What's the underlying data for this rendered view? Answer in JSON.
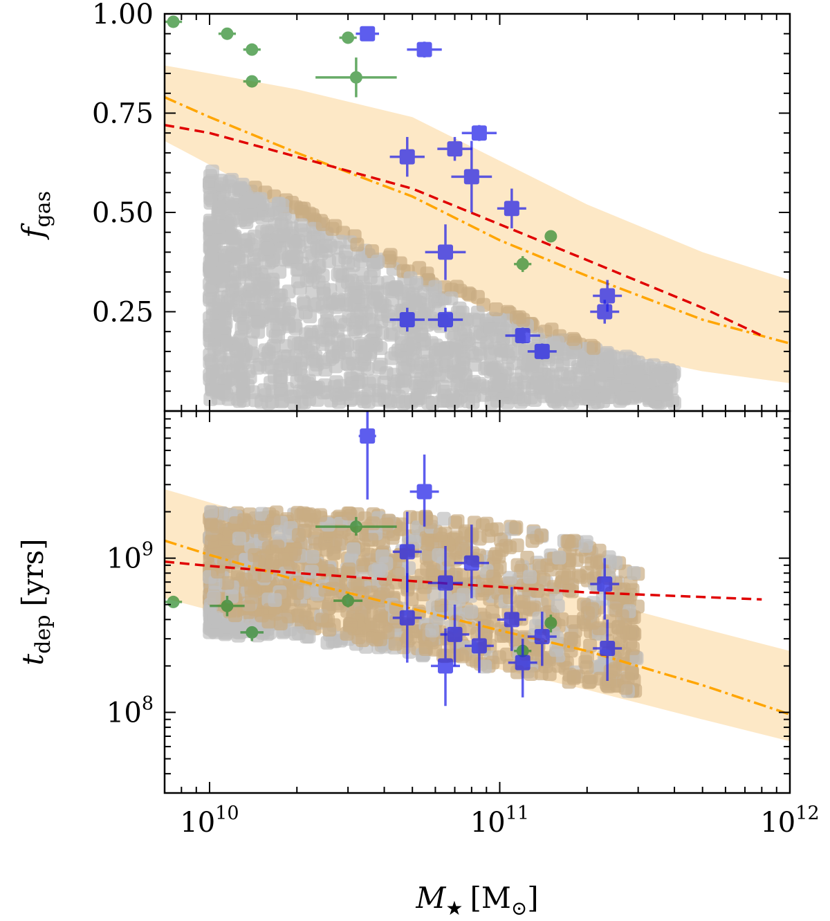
{
  "chart_data": [
    {
      "panel": "top",
      "type": "scatter",
      "xscale": "log",
      "xlim": [
        7000000000.0,
        1000000000000.0
      ],
      "ylim": [
        0.0,
        1.0
      ],
      "ylabel": {
        "main": "f",
        "sub": "gas"
      },
      "yticks": [
        {
          "value": 0.25,
          "label": "0.25"
        },
        {
          "value": 0.5,
          "label": "0.50"
        },
        {
          "value": 0.75,
          "label": "0.75"
        },
        {
          "value": 1.0,
          "label": "1.00"
        }
      ],
      "colors": {
        "blue": "#1f1fe8",
        "green": "#2e8b2e",
        "gray": "#bfbfbf",
        "tan": "#c9ad83",
        "band": "#fde8c6",
        "red": "#e00000",
        "orange": "#ffa500"
      },
      "band": {
        "x": [
          7000000000.0,
          10000000000.0,
          20000000000.0,
          50000000000.0,
          100000000000.0,
          200000000000.0,
          500000000000.0,
          1000000000000.0
        ],
        "lower": [
          0.68,
          0.62,
          0.5,
          0.34,
          0.24,
          0.16,
          0.1,
          0.07
        ],
        "upper": [
          0.87,
          0.85,
          0.81,
          0.74,
          0.63,
          0.52,
          0.4,
          0.33
        ]
      },
      "orange_line": {
        "x": [
          7000000000.0,
          10000000000.0,
          20000000000.0,
          50000000000.0,
          100000000000.0,
          200000000000.0,
          500000000000.0,
          1000000000000.0
        ],
        "y": [
          0.79,
          0.74,
          0.65,
          0.54,
          0.43,
          0.34,
          0.23,
          0.17
        ]
      },
      "red_line": {
        "x": [
          7000000000.0,
          10000000000.0,
          20000000000.0,
          50000000000.0,
          100000000000.0,
          200000000000.0,
          500000000000.0,
          800000000000.0
        ],
        "y": [
          0.72,
          0.7,
          0.64,
          0.56,
          0.47,
          0.38,
          0.26,
          0.19
        ]
      },
      "gray_region": {
        "x": [
          10000000000.0,
          20000000000.0,
          50000000000.0,
          100000000000.0,
          200000000000.0,
          400000000000.0
        ],
        "lower": [
          0.02,
          0.02,
          0.02,
          0.02,
          0.02,
          0.02
        ],
        "upper": [
          0.61,
          0.52,
          0.37,
          0.26,
          0.17,
          0.1
        ]
      },
      "blue_points": [
        {
          "x": 35000000000.0,
          "y": 0.95,
          "xerr": 0.04,
          "yerr": 0.0
        },
        {
          "x": 55000000000.0,
          "y": 0.91,
          "xerr": 0.06,
          "yerr": 0.02
        },
        {
          "x": 85000000000.0,
          "y": 0.7,
          "xerr": 0.06,
          "yerr": 0.02
        },
        {
          "x": 70000000000.0,
          "y": 0.66,
          "xerr": 0.06,
          "yerr": 0.03
        },
        {
          "x": 48000000000.0,
          "y": 0.64,
          "xerr": 0.06,
          "yerr": 0.05
        },
        {
          "x": 80000000000.0,
          "y": 0.59,
          "xerr": 0.07,
          "yerr": 0.09
        },
        {
          "x": 110000000000.0,
          "y": 0.51,
          "xerr": 0.05,
          "yerr": 0.05
        },
        {
          "x": 65000000000.0,
          "y": 0.4,
          "xerr": 0.07,
          "yerr": 0.07
        },
        {
          "x": 235000000000.0,
          "y": 0.29,
          "xerr": 0.05,
          "yerr": 0.04
        },
        {
          "x": 230000000000.0,
          "y": 0.25,
          "xerr": 0.05,
          "yerr": 0.03
        },
        {
          "x": 48000000000.0,
          "y": 0.23,
          "xerr": 0.06,
          "yerr": 0.03
        },
        {
          "x": 65000000000.0,
          "y": 0.23,
          "xerr": 0.06,
          "yerr": 0.03
        },
        {
          "x": 120000000000.0,
          "y": 0.19,
          "xerr": 0.06,
          "yerr": 0.02
        },
        {
          "x": 140000000000.0,
          "y": 0.15,
          "xerr": 0.05,
          "yerr": 0.02
        }
      ],
      "green_points": [
        {
          "x": 7500000000.0,
          "y": 0.98,
          "xerr": 0.03,
          "yerr": 0.0
        },
        {
          "x": 11500000000.0,
          "y": 0.95,
          "xerr": 0.03,
          "yerr": 0.0
        },
        {
          "x": 14000000000.0,
          "y": 0.91,
          "xerr": 0.03,
          "yerr": 0.0
        },
        {
          "x": 30000000000.0,
          "y": 0.94,
          "xerr": 0.03,
          "yerr": 0.0
        },
        {
          "x": 14000000000.0,
          "y": 0.83,
          "xerr": 0.03,
          "yerr": 0.0
        },
        {
          "x": 32000000000.0,
          "y": 0.84,
          "xerr": 0.14,
          "yerr": 0.05
        },
        {
          "x": 150000000000.0,
          "y": 0.44,
          "xerr": 0.02,
          "yerr": 0.0
        },
        {
          "x": 120000000000.0,
          "y": 0.37,
          "xerr": 0.03,
          "yerr": 0.02
        }
      ]
    },
    {
      "panel": "bottom",
      "type": "scatter",
      "xscale": "log",
      "yscale": "log",
      "xlim": [
        7000000000.0,
        1000000000000.0
      ],
      "ylim": [
        30000000.0,
        9000000000.0
      ],
      "xlabel": {
        "main": "M",
        "sub": "★",
        "unit": "[M",
        "unit_sub": "⊙",
        "unit_end": "]"
      },
      "ylabel": {
        "main": "t",
        "sub": "dep",
        "unit": "[yrs]"
      },
      "xticks": [
        {
          "value": 10000000000.0,
          "base": "10",
          "exp": "10"
        },
        {
          "value": 100000000000.0,
          "base": "10",
          "exp": "11"
        },
        {
          "value": 1000000000000.0,
          "base": "10",
          "exp": "12"
        }
      ],
      "yticks": [
        {
          "value": 100000000.0,
          "base": "10",
          "exp": "8"
        },
        {
          "value": 1000000000.0,
          "base": "10",
          "exp": "9"
        }
      ],
      "band": {
        "x": [
          7000000000.0,
          10000000000.0,
          20000000000.0,
          50000000000.0,
          100000000000.0,
          200000000000.0,
          500000000000.0,
          1000000000000.0
        ],
        "lower": [
          550000000.0,
          460000000.0,
          350000000.0,
          250000000.0,
          190000000.0,
          140000000.0,
          90000000.0,
          65000000.0
        ],
        "upper": [
          2800000000.0,
          2300000000.0,
          1600000000.0,
          1050000000.0,
          750000000.0,
          550000000.0,
          350000000.0,
          250000000.0
        ]
      },
      "orange_line": {
        "x": [
          7000000000.0,
          10000000000.0,
          20000000000.0,
          50000000000.0,
          100000000000.0,
          200000000000.0,
          500000000000.0,
          1000000000000.0
        ],
        "y": [
          1300000000.0,
          1050000000.0,
          720000000.0,
          470000000.0,
          340000000.0,
          250000000.0,
          150000000.0,
          97000000.0
        ]
      },
      "red_line": {
        "x": [
          7000000000.0,
          10000000000.0,
          20000000000.0,
          50000000000.0,
          100000000000.0,
          200000000000.0,
          500000000000.0,
          800000000000.0
        ],
        "y": [
          950000000.0,
          890000000.0,
          800000000.0,
          710000000.0,
          650000000.0,
          600000000.0,
          560000000.0,
          540000000.0
        ]
      },
      "gray_region": {
        "x": [
          10000000000.0,
          20000000000.0,
          50000000000.0,
          100000000000.0,
          200000000000.0,
          300000000000.0
        ],
        "lower": [
          320000000.0,
          300000000.0,
          240000000.0,
          190000000.0,
          150000000.0,
          130000000.0
        ],
        "upper": [
          2000000000.0,
          2000000000.0,
          1900000000.0,
          1700000000.0,
          1300000000.0,
          800000000.0
        ]
      },
      "blue_points": [
        {
          "x": 35000000000.0,
          "y": 6200000000.0,
          "xerr": 0.03,
          "ylo": 2400000000.0,
          "yhi": 9000000000.0
        },
        {
          "x": 55000000000.0,
          "y": 2700000000.0,
          "xerr": 0.05,
          "ylo": 1600000000.0,
          "yhi": 4700000000.0
        },
        {
          "x": 48000000000.0,
          "y": 1100000000.0,
          "xerr": 0.05,
          "ylo": 600000000.0,
          "yhi": 2000000000.0
        },
        {
          "x": 80000000000.0,
          "y": 930000000.0,
          "xerr": 0.06,
          "ylo": 550000000.0,
          "yhi": 1650000000.0
        },
        {
          "x": 65000000000.0,
          "y": 690000000.0,
          "xerr": 0.06,
          "ylo": 400000000.0,
          "yhi": 1200000000.0
        },
        {
          "x": 230000000000.0,
          "y": 680000000.0,
          "xerr": 0.05,
          "ylo": 400000000.0,
          "yhi": 1000000000.0
        },
        {
          "x": 48000000000.0,
          "y": 410000000.0,
          "xerr": 0.05,
          "ylo": 210000000.0,
          "yhi": 800000000.0
        },
        {
          "x": 110000000000.0,
          "y": 400000000.0,
          "xerr": 0.05,
          "ylo": 250000000.0,
          "yhi": 650000000.0
        },
        {
          "x": 70000000000.0,
          "y": 320000000.0,
          "xerr": 0.05,
          "ylo": 200000000.0,
          "yhi": 500000000.0
        },
        {
          "x": 140000000000.0,
          "y": 310000000.0,
          "xerr": 0.05,
          "ylo": 200000000.0,
          "yhi": 450000000.0
        },
        {
          "x": 85000000000.0,
          "y": 270000000.0,
          "xerr": 0.05,
          "ylo": 180000000.0,
          "yhi": 390000000.0
        },
        {
          "x": 235000000000.0,
          "y": 260000000.0,
          "xerr": 0.05,
          "ylo": 160000000.0,
          "yhi": 400000000.0
        },
        {
          "x": 120000000000.0,
          "y": 210000000.0,
          "xerr": 0.05,
          "ylo": 125000000.0,
          "yhi": 300000000.0
        },
        {
          "x": 65000000000.0,
          "y": 200000000.0,
          "xerr": 0.05,
          "ylo": 110000000.0,
          "yhi": 350000000.0
        }
      ],
      "green_points": [
        {
          "x": 32000000000.0,
          "y": 1600000000.0,
          "xerr": 0.14,
          "ylo": 1400000000.0,
          "yhi": 1850000000.0
        },
        {
          "x": 7500000000.0,
          "y": 520000000.0,
          "xerr": 0.03,
          "ylo": 520000000.0,
          "yhi": 520000000.0
        },
        {
          "x": 30000000000.0,
          "y": 530000000.0,
          "xerr": 0.05,
          "ylo": 480000000.0,
          "yhi": 590000000.0
        },
        {
          "x": 11500000000.0,
          "y": 490000000.0,
          "xerr": 0.06,
          "ylo": 420000000.0,
          "yhi": 570000000.0
        },
        {
          "x": 150000000000.0,
          "y": 380000000.0,
          "xerr": 0.02,
          "ylo": 330000000.0,
          "yhi": 430000000.0
        },
        {
          "x": 14000000000.0,
          "y": 330000000.0,
          "xerr": 0.04,
          "ylo": 290000000.0,
          "yhi": 360000000.0
        },
        {
          "x": 120000000000.0,
          "y": 250000000.0,
          "xerr": 0.03,
          "ylo": 230000000.0,
          "yhi": 270000000.0
        }
      ]
    }
  ]
}
